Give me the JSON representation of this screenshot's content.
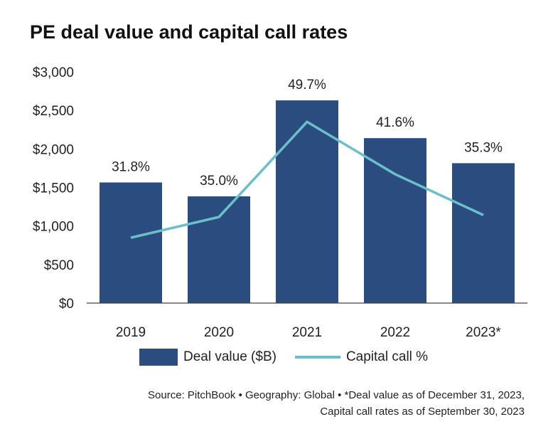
{
  "title": "PE deal value and capital call rates",
  "colors": {
    "bar": "#2b4c7e",
    "line": "#6bbfc9",
    "axis": "#444444"
  },
  "chart_data": {
    "type": "bar",
    "categories": [
      "2019",
      "2020",
      "2021",
      "2022",
      "2023*"
    ],
    "series": [
      {
        "name": "Deal value ($B)",
        "type": "bar",
        "values": [
          1565,
          1385,
          2630,
          2140,
          1815
        ]
      },
      {
        "name": "Capital call %",
        "type": "line",
        "values": [
          31.8,
          35.0,
          49.7,
          41.6,
          35.3
        ],
        "labels": [
          "31.8%",
          "35.0%",
          "49.7%",
          "41.6%",
          "35.3%"
        ]
      }
    ],
    "ylim": [
      0,
      3000
    ],
    "yticks": [
      "$0",
      "$500",
      "$1,000",
      "$1,500",
      "$2,000",
      "$2,500",
      "$3,000"
    ],
    "legend_position": "bottom",
    "grid": false
  },
  "legend": {
    "bar_label": "Deal value ($B)",
    "line_label": "Capital call %"
  },
  "source": {
    "line1": "Source: PitchBook  •  Geography: Global  •  *Deal value as of December 31, 2023,",
    "line2": "Capital call rates as of September 30, 2023"
  }
}
